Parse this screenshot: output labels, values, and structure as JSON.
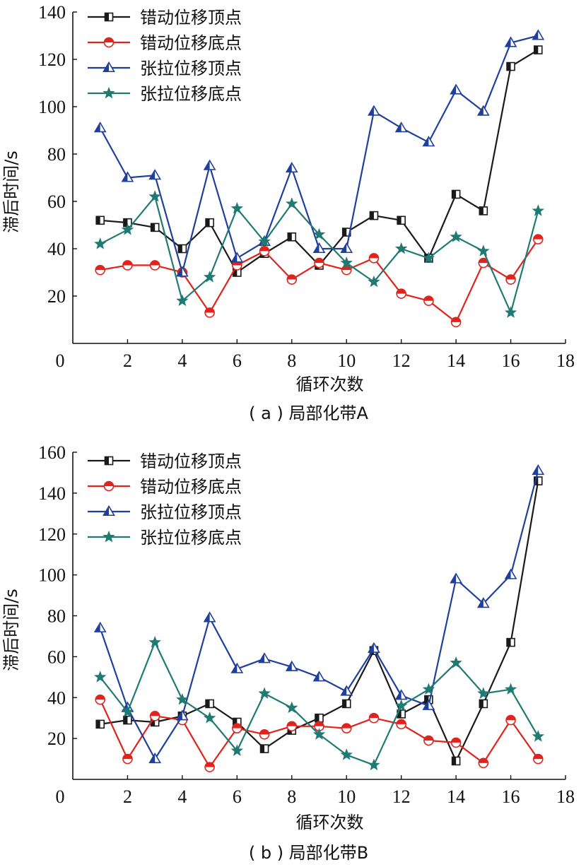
{
  "chart_data": [
    {
      "type": "line",
      "caption": "( a ) 局部化带A",
      "xlabel": "循环次数",
      "ylabel": "滞后时间/s",
      "xlim": [
        0,
        18
      ],
      "ylim": [
        0,
        140
      ],
      "xticks": [
        0,
        2,
        4,
        6,
        8,
        10,
        12,
        14,
        16,
        18
      ],
      "yticks": [
        20,
        40,
        60,
        80,
        100,
        120,
        140
      ],
      "x": [
        1,
        2,
        3,
        4,
        5,
        6,
        7,
        8,
        9,
        10,
        11,
        12,
        13,
        14,
        15,
        16,
        17
      ],
      "legend_position": "top-left",
      "grid": false,
      "series": [
        {
          "name": "错动位移顶点",
          "color": "#1a1a1a",
          "marker": "square",
          "values": [
            52,
            51,
            49,
            40,
            51,
            30,
            38,
            45,
            33,
            47,
            54,
            52,
            36,
            63,
            56,
            117,
            124
          ]
        },
        {
          "name": "错动位移底点",
          "color": "#e0231c",
          "marker": "circle",
          "values": [
            31,
            33,
            33,
            30,
            13,
            33,
            39,
            27,
            34,
            31,
            36,
            21,
            18,
            9,
            34,
            27,
            44
          ]
        },
        {
          "name": "张拉位移顶点",
          "color": "#1f3f9e",
          "marker": "triangle",
          "values": [
            91,
            70,
            71,
            30,
            75,
            36,
            43,
            74,
            40,
            40,
            98,
            91,
            85,
            107,
            98,
            127,
            130
          ]
        },
        {
          "name": "张拉位移底点",
          "color": "#1f7a72",
          "marker": "star",
          "values": [
            42,
            48,
            62,
            18,
            28,
            57,
            43,
            59,
            46,
            34,
            26,
            40,
            36,
            45,
            39,
            13,
            56
          ]
        }
      ]
    },
    {
      "type": "line",
      "caption": "( b ) 局部化带B",
      "xlabel": "循环次数",
      "ylabel": "滞后时间/s",
      "xlim": [
        0,
        18
      ],
      "ylim": [
        0,
        160
      ],
      "xticks": [
        0,
        2,
        4,
        6,
        8,
        10,
        12,
        14,
        16,
        18
      ],
      "yticks": [
        20,
        40,
        60,
        80,
        100,
        120,
        140,
        160
      ],
      "x": [
        1,
        2,
        3,
        4,
        5,
        6,
        7,
        8,
        9,
        10,
        11,
        12,
        13,
        14,
        15,
        16,
        17
      ],
      "legend_position": "top-left",
      "grid": false,
      "series": [
        {
          "name": "错动位移顶点",
          "color": "#1a1a1a",
          "marker": "square",
          "values": [
            27,
            29,
            28,
            31,
            37,
            28,
            15,
            24,
            30,
            37,
            63,
            32,
            39,
            9,
            37,
            67,
            146
          ]
        },
        {
          "name": "错动位移底点",
          "color": "#e0231c",
          "marker": "circle",
          "values": [
            39,
            10,
            31,
            29,
            6,
            25,
            22,
            26,
            26,
            25,
            30,
            27,
            19,
            18,
            8,
            29,
            10
          ]
        },
        {
          "name": "张拉位移顶点",
          "color": "#1f3f9e",
          "marker": "triangle",
          "values": [
            74,
            35,
            10,
            31,
            79,
            54,
            59,
            55,
            50,
            43,
            64,
            41,
            36,
            98,
            86,
            100,
            151
          ]
        },
        {
          "name": "张拉位移底点",
          "color": "#1f7a72",
          "marker": "star",
          "values": [
            50,
            33,
            67,
            39,
            30,
            14,
            42,
            35,
            22,
            12,
            7,
            36,
            44,
            57,
            42,
            44,
            21
          ]
        }
      ]
    }
  ]
}
